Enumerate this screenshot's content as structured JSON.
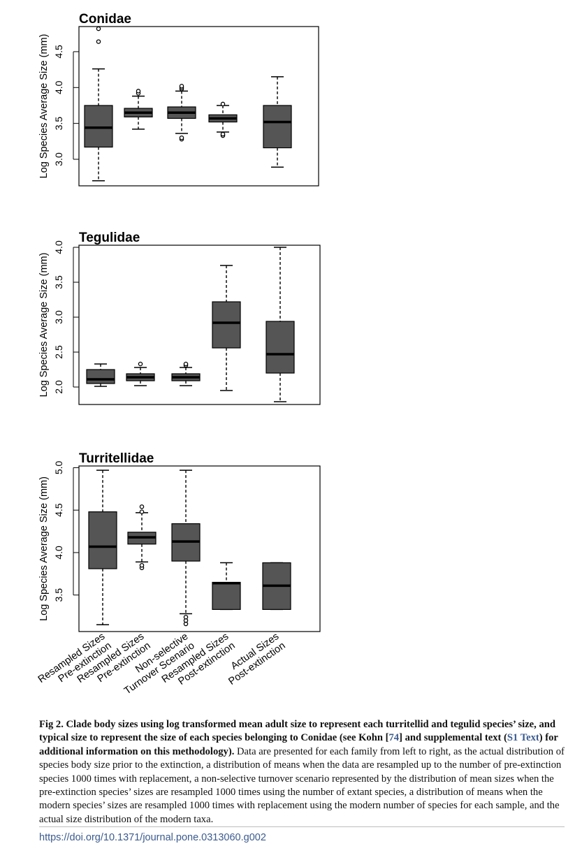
{
  "chart_data": [
    {
      "type": "box",
      "title": "Conidae",
      "ylabel": "Log Species Average Size (mm)",
      "yticks": [
        3.0,
        3.5,
        4.0,
        4.5
      ],
      "ylim": [
        2.63,
        4.85
      ],
      "categories": [
        "Resampled Sizes Pre-extinction",
        "Resampled Sizes Pre-extinction",
        "Non-selective Turnover Scenario",
        "Resampled Sizes Post-extinction",
        "Actual Sizes Post-extinction"
      ],
      "boxes": [
        {
          "whisker_low": 2.7,
          "q1": 3.17,
          "median": 3.44,
          "q3": 3.75,
          "whisker_high": 4.26,
          "outliers": [
            4.64,
            4.82
          ]
        },
        {
          "whisker_low": 3.42,
          "q1": 3.59,
          "median": 3.65,
          "q3": 3.71,
          "whisker_high": 3.88,
          "outliers": [
            3.92,
            3.95
          ]
        },
        {
          "whisker_low": 3.36,
          "q1": 3.57,
          "median": 3.65,
          "q3": 3.73,
          "whisker_high": 3.95,
          "outliers": [
            3.28,
            3.3,
            3.98,
            4.0,
            4.02
          ]
        },
        {
          "whisker_low": 3.38,
          "q1": 3.52,
          "median": 3.57,
          "q3": 3.62,
          "whisker_high": 3.75,
          "outliers": [
            3.33,
            3.35,
            3.77
          ]
        },
        {
          "whisker_low": 2.89,
          "q1": 3.16,
          "median": 3.52,
          "q3": 3.75,
          "whisker_high": 4.15,
          "outliers": []
        }
      ]
    },
    {
      "type": "box",
      "title": "Tegulidae",
      "ylabel": "Log Species Average Size (mm)",
      "yticks": [
        2.0,
        2.5,
        3.0,
        3.5,
        4.0
      ],
      "ylim": [
        1.75,
        4.03
      ],
      "categories": [
        "Resampled Sizes Pre-extinction",
        "Resampled Sizes Pre-extinction",
        "Non-selective Turnover Scenario",
        "Resampled Sizes Post-extinction",
        "Actual Sizes Post-extinction"
      ],
      "boxes": [
        {
          "whisker_low": 2.01,
          "q1": 2.05,
          "median": 2.11,
          "q3": 2.25,
          "whisker_high": 2.33,
          "outliers": []
        },
        {
          "whisker_low": 2.02,
          "q1": 2.09,
          "median": 2.14,
          "q3": 2.19,
          "whisker_high": 2.28,
          "outliers": [
            2.33
          ]
        },
        {
          "whisker_low": 2.02,
          "q1": 2.09,
          "median": 2.14,
          "q3": 2.19,
          "whisker_high": 2.28,
          "outliers": [
            2.31,
            2.33
          ]
        },
        {
          "whisker_low": 1.95,
          "q1": 2.56,
          "median": 2.92,
          "q3": 3.22,
          "whisker_high": 3.74,
          "outliers": []
        },
        {
          "whisker_low": 1.79,
          "q1": 2.2,
          "median": 2.47,
          "q3": 2.94,
          "whisker_high": 4.0,
          "outliers": []
        }
      ]
    },
    {
      "type": "box",
      "title": "Turritellidae",
      "ylabel": "Log Species Average Size (mm)",
      "yticks": [
        3.5,
        4.0,
        4.5,
        5.0
      ],
      "ylim": [
        3.07,
        5.02
      ],
      "categories": [
        "Resampled Sizes Pre-extinction",
        "Resampled Sizes Pre-extinction",
        "Non-selective Turnover Scenario",
        "Resampled Sizes Post-extinction",
        "Actual Sizes Post-extinction"
      ],
      "boxes": [
        {
          "whisker_low": 3.15,
          "q1": 3.81,
          "median": 4.07,
          "q3": 4.48,
          "whisker_high": 4.97,
          "outliers": []
        },
        {
          "whisker_low": 3.89,
          "q1": 4.1,
          "median": 4.18,
          "q3": 4.24,
          "whisker_high": 4.47,
          "outliers": [
            3.82,
            3.85,
            4.48,
            4.54
          ]
        },
        {
          "whisker_low": 3.28,
          "q1": 3.9,
          "median": 4.13,
          "q3": 4.34,
          "whisker_high": 4.97,
          "outliers": [
            3.16,
            3.2,
            3.24
          ]
        },
        {
          "whisker_low": 3.33,
          "q1": 3.33,
          "median": 3.64,
          "q3": 3.65,
          "whisker_high": 3.88,
          "outliers": []
        },
        {
          "whisker_low": 3.33,
          "q1": 3.33,
          "median": 3.61,
          "q3": 3.88,
          "whisker_high": 3.88,
          "outliers": []
        }
      ]
    }
  ],
  "x_tick_labels": [
    [
      "Resampled Sizes",
      "Pre-extinction"
    ],
    [
      "Resampled Sizes",
      "Pre-extinction"
    ],
    [
      "Non-selective",
      "Turnover Scenario"
    ],
    [
      "Resampled Sizes",
      "Post-extinction"
    ],
    [
      "Actual Sizes",
      "Post-extinction"
    ]
  ],
  "caption": {
    "bold_1": "Fig 2. Clade body sizes using log transformed mean adult size to represent each turritellid and tegulid species’ size, and typical size to represent the size of each species belonging to Conidae (see Kohn [",
    "ref_1": "74",
    "bold_2": "] and supplemental text (",
    "ref_2": "S1 Text",
    "bold_3": ") for additional information on this methodology).",
    "body": " Data are presented for each family from left to right, as the actual distribution of species body size prior to the extinction, a distribution of means when the data are resampled up to the number of pre-extinction species 1000 times with replacement, a non-selective turnover scenario represented by the distribution of mean sizes when the pre-extinction species’ sizes are resampled 1000 times using the number of extant species, a distribution of means when the modern species’ sizes are resampled 1000 times with replacement using the modern number of species for each sample, and the actual size distribution of the modern taxa."
  },
  "doi": "https://doi.org/10.1371/journal.pone.0313060.g002",
  "colors": {
    "box_fill": "#555555",
    "caption_link": "#3b5b8f"
  }
}
